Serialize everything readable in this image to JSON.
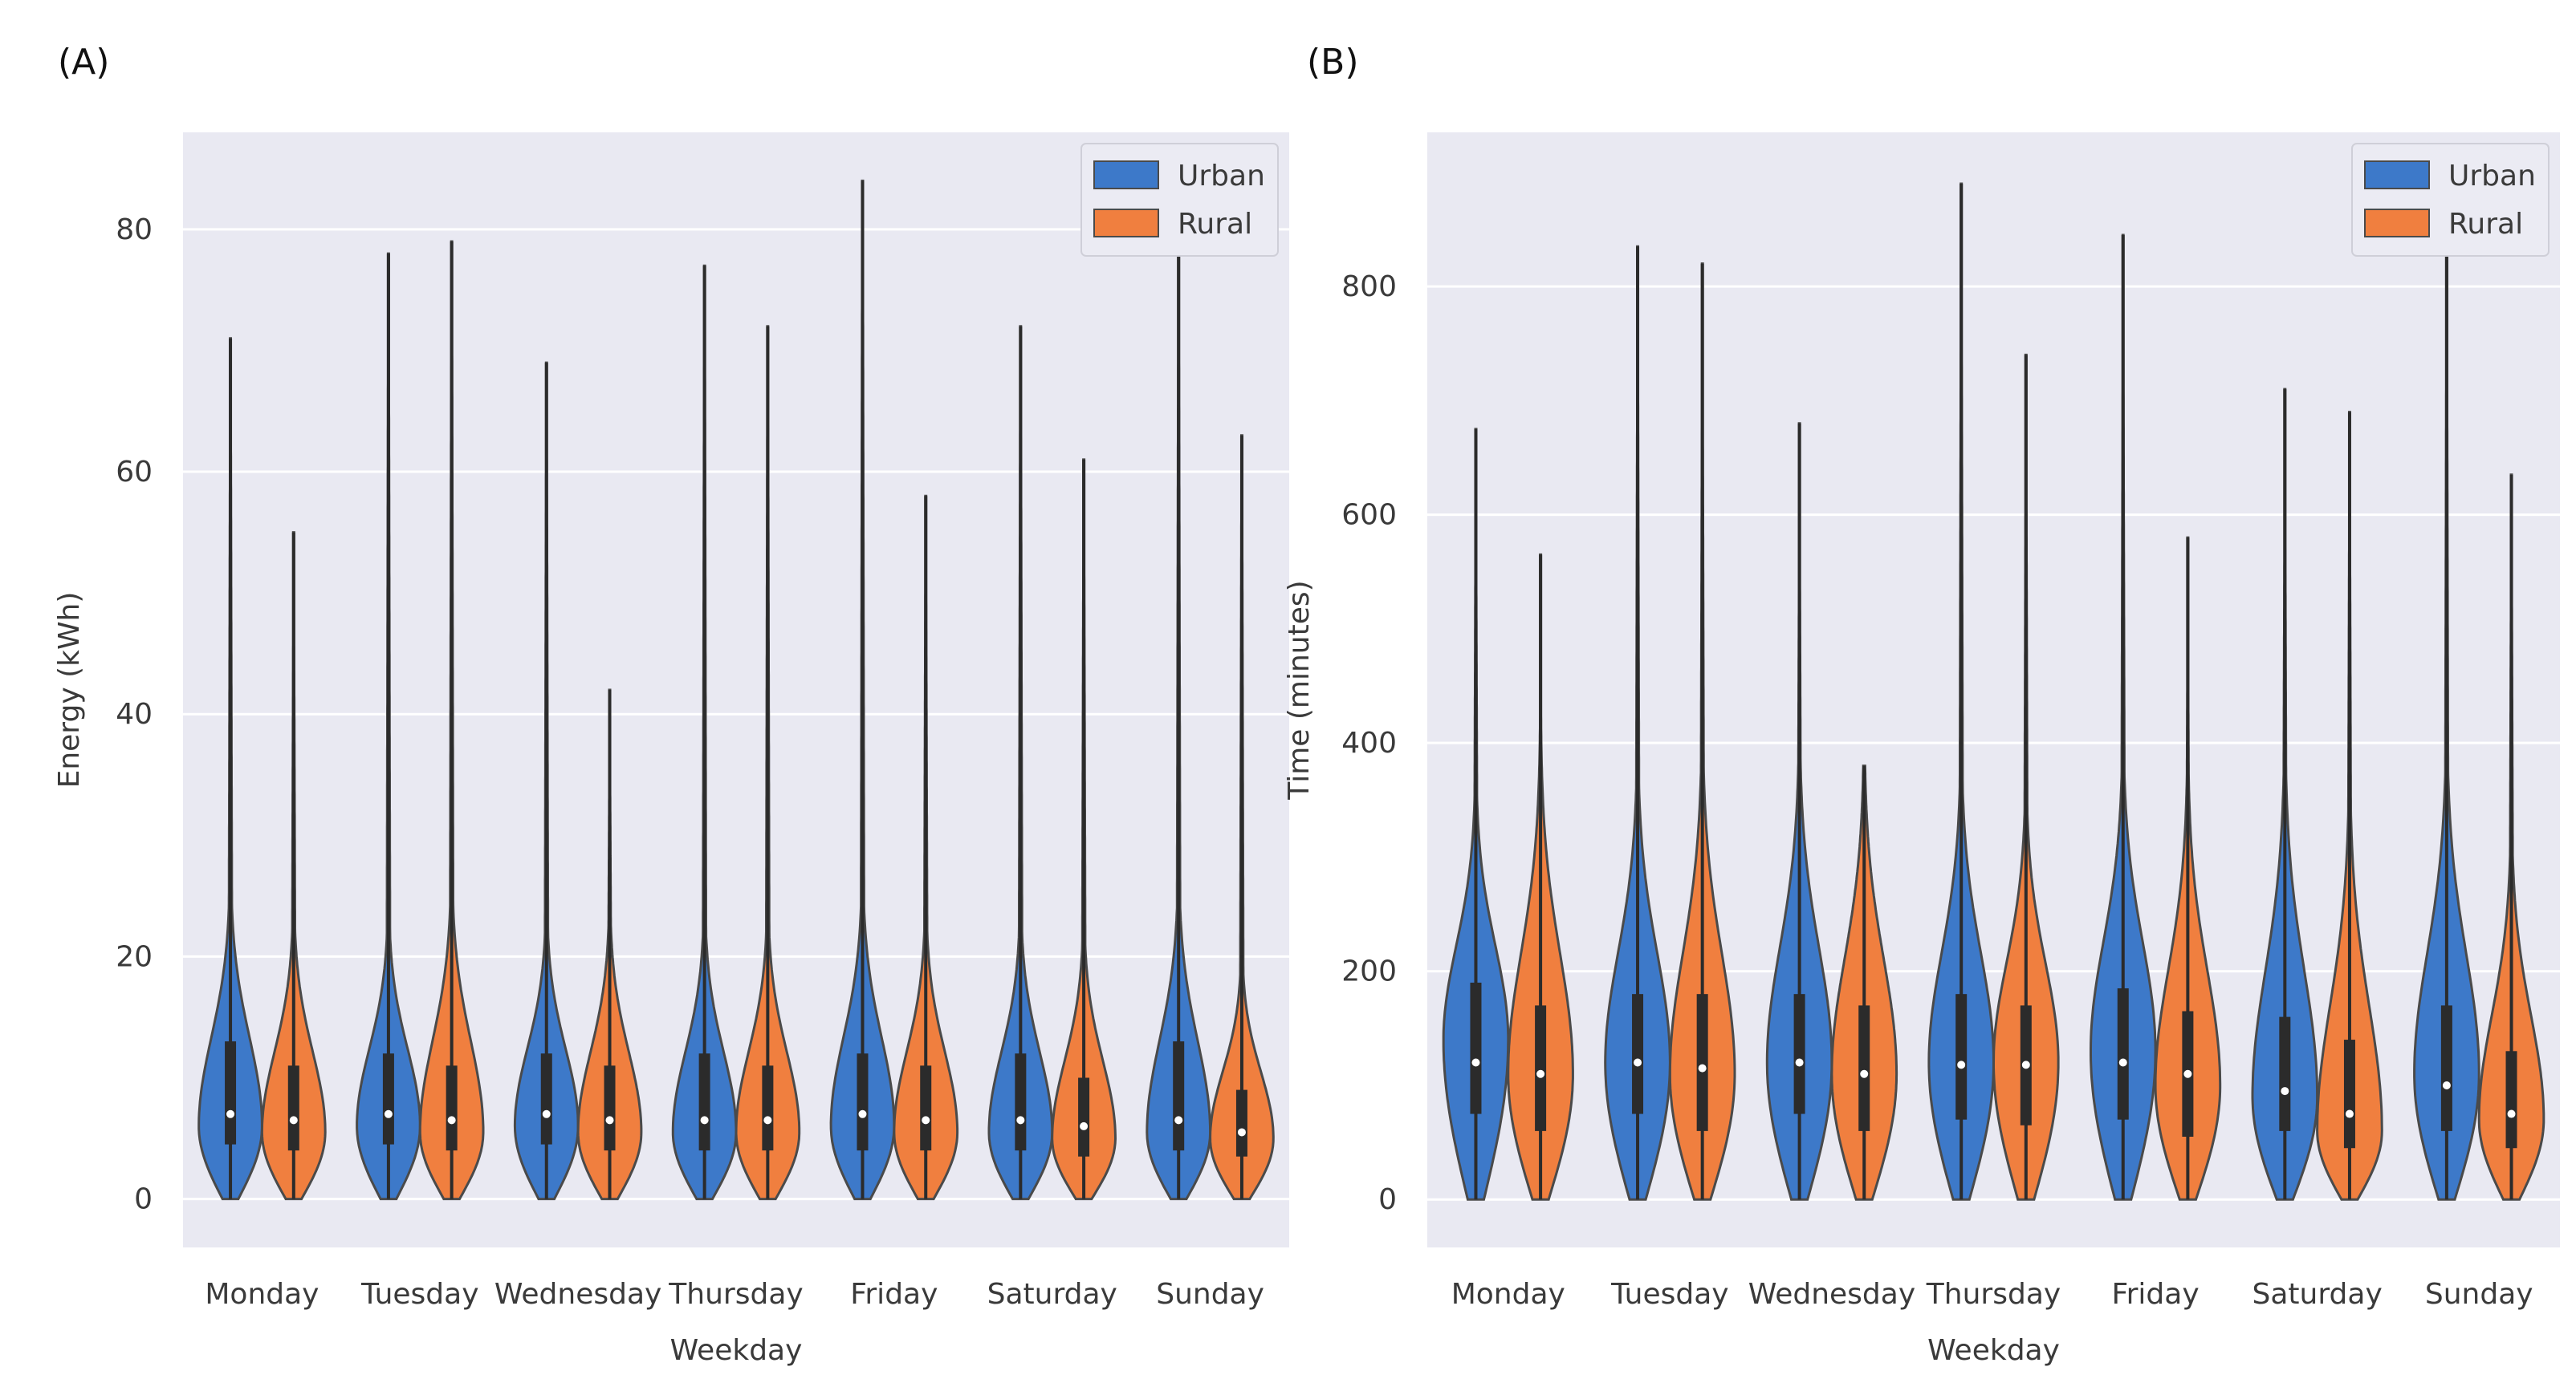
{
  "figure": {
    "panels": [
      "(A)",
      "(B)"
    ]
  },
  "colors": {
    "urban": "#3d79c9",
    "rural": "#f07f3f",
    "background": "#e9e9f2",
    "grid": "#ffffff",
    "outline": "#4a4a4a",
    "box": "#2b2b2b",
    "median": "#ffffff"
  },
  "chart_data": [
    {
      "type": "violin",
      "panel_label": "(A)",
      "title": "",
      "xlabel": "Weekday",
      "ylabel": "Energy (kWh)",
      "categories": [
        "Monday",
        "Tuesday",
        "Wednesday",
        "Thursday",
        "Friday",
        "Saturday",
        "Sunday"
      ],
      "ylim": [
        -4,
        88
      ],
      "yticks": [
        0,
        20,
        40,
        60,
        80
      ],
      "legend": {
        "position": "top-right",
        "entries": [
          "Urban",
          "Rural"
        ]
      },
      "series": [
        {
          "name": "Urban",
          "max": [
            71,
            78,
            69,
            77,
            84,
            72,
            80
          ],
          "median": [
            7,
            7,
            7,
            6.5,
            7,
            6.5,
            6.5
          ],
          "q1": [
            4.5,
            4.5,
            4.5,
            4,
            4,
            4,
            4
          ],
          "q3": [
            13,
            12,
            12,
            12,
            12,
            12,
            13
          ],
          "mode": [
            6,
            6,
            6,
            5.5,
            6,
            5.5,
            5.5
          ],
          "bulk_top": [
            22,
            20,
            20,
            20,
            22,
            20,
            22
          ],
          "width": [
            0.46,
            0.46,
            0.46,
            0.46,
            0.46,
            0.46,
            0.46
          ]
        },
        {
          "name": "Rural",
          "max": [
            55,
            79,
            42,
            72,
            58,
            61,
            63
          ],
          "median": [
            6.5,
            6.5,
            6.5,
            6.5,
            6.5,
            6,
            5.5
          ],
          "q1": [
            4,
            4,
            4,
            4,
            4,
            3.5,
            3.5
          ],
          "q3": [
            11,
            11,
            11,
            11,
            11,
            10,
            9
          ],
          "mode": [
            5.5,
            5.5,
            5.5,
            5.5,
            5.5,
            5,
            5
          ],
          "bulk_top": [
            20,
            22,
            20,
            20,
            20,
            19,
            17
          ],
          "width": [
            0.48,
            0.48,
            0.48,
            0.48,
            0.48,
            0.48,
            0.48
          ]
        }
      ]
    },
    {
      "type": "violin",
      "panel_label": "(B)",
      "title": "",
      "xlabel": "Weekday",
      "ylabel": "Time (minutes)",
      "categories": [
        "Monday",
        "Tuesday",
        "Wednesday",
        "Thursday",
        "Friday",
        "Saturday",
        "Sunday"
      ],
      "ylim": [
        -42,
        935
      ],
      "yticks": [
        0,
        200,
        400,
        600,
        800
      ],
      "legend": {
        "position": "top-right",
        "entries": [
          "Urban",
          "Rural"
        ]
      },
      "series": [
        {
          "name": "Urban",
          "max": [
            675,
            835,
            680,
            890,
            845,
            710,
            860
          ],
          "median": [
            120,
            120,
            120,
            118,
            120,
            95,
            100
          ],
          "q1": [
            75,
            75,
            75,
            70,
            70,
            60,
            60
          ],
          "q3": [
            190,
            180,
            180,
            180,
            185,
            160,
            170
          ],
          "mode": [
            140,
            120,
            120,
            120,
            130,
            90,
            110
          ],
          "bulk_top": [
            320,
            330,
            340,
            330,
            340,
            330,
            340
          ],
          "width": [
            0.5,
            0.5,
            0.5,
            0.5,
            0.5,
            0.5,
            0.5
          ]
        },
        {
          "name": "Rural",
          "max": [
            565,
            820,
            380,
            740,
            580,
            690,
            635
          ],
          "median": [
            110,
            115,
            110,
            118,
            110,
            75,
            75
          ],
          "q1": [
            60,
            60,
            60,
            65,
            55,
            45,
            45
          ],
          "q3": [
            170,
            180,
            170,
            170,
            165,
            140,
            130
          ],
          "mode": [
            110,
            110,
            110,
            120,
            100,
            60,
            70
          ],
          "bulk_top": [
            340,
            340,
            330,
            310,
            320,
            300,
            270
          ],
          "width": [
            0.5,
            0.5,
            0.5,
            0.5,
            0.5,
            0.5,
            0.5
          ]
        }
      ]
    }
  ]
}
